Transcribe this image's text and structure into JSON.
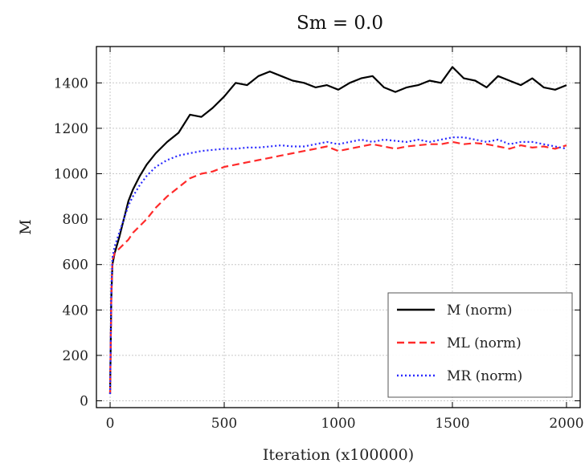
{
  "chart_data": {
    "type": "line",
    "title": "Sm = 0.0",
    "xlabel": "Iteration (x100000)",
    "ylabel": "M",
    "xlim": [
      -60,
      2060
    ],
    "ylim": [
      -30,
      1560
    ],
    "xticks": [
      0,
      500,
      1000,
      1500,
      2000
    ],
    "yticks": [
      0,
      200,
      400,
      600,
      800,
      1000,
      1200,
      1400
    ],
    "grid": true,
    "legend_position": "bottom-right",
    "series": [
      {
        "name": "M (norm)",
        "color": "#000000",
        "dash": "solid",
        "x": [
          0,
          5,
          10,
          20,
          40,
          60,
          80,
          100,
          130,
          160,
          200,
          250,
          300,
          350,
          400,
          450,
          500,
          550,
          600,
          650,
          700,
          750,
          800,
          850,
          900,
          950,
          1000,
          1050,
          1100,
          1150,
          1200,
          1250,
          1300,
          1350,
          1400,
          1450,
          1500,
          1550,
          1600,
          1650,
          1700,
          1750,
          1800,
          1850,
          1900,
          1950,
          2000
        ],
        "y": [
          30,
          450,
          600,
          650,
          720,
          800,
          880,
          930,
          990,
          1040,
          1090,
          1140,
          1180,
          1260,
          1250,
          1290,
          1340,
          1400,
          1390,
          1430,
          1450,
          1430,
          1410,
          1400,
          1380,
          1390,
          1370,
          1400,
          1420,
          1430,
          1380,
          1360,
          1380,
          1390,
          1410,
          1400,
          1470,
          1420,
          1410,
          1380,
          1430,
          1410,
          1390,
          1420,
          1380,
          1370,
          1390
        ]
      },
      {
        "name": "ML (norm)",
        "color": "#ff2a2a",
        "dash": "dashed",
        "x": [
          0,
          5,
          10,
          20,
          40,
          60,
          80,
          100,
          130,
          160,
          200,
          250,
          300,
          350,
          400,
          450,
          500,
          550,
          600,
          650,
          700,
          750,
          800,
          850,
          900,
          950,
          1000,
          1050,
          1100,
          1150,
          1200,
          1250,
          1300,
          1350,
          1400,
          1450,
          1500,
          1550,
          1600,
          1650,
          1700,
          1750,
          1800,
          1850,
          1900,
          1950,
          2000
        ],
        "y": [
          30,
          450,
          620,
          650,
          670,
          690,
          710,
          740,
          770,
          800,
          850,
          900,
          940,
          980,
          1000,
          1010,
          1030,
          1040,
          1050,
          1060,
          1070,
          1080,
          1090,
          1100,
          1110,
          1120,
          1100,
          1110,
          1120,
          1130,
          1120,
          1110,
          1120,
          1125,
          1130,
          1130,
          1140,
          1130,
          1135,
          1130,
          1120,
          1110,
          1125,
          1115,
          1120,
          1110,
          1125
        ]
      },
      {
        "name": "MR (norm)",
        "color": "#2a2aff",
        "dash": "dotted",
        "x": [
          0,
          5,
          10,
          20,
          40,
          60,
          80,
          100,
          130,
          160,
          200,
          250,
          300,
          350,
          400,
          450,
          500,
          550,
          600,
          650,
          700,
          750,
          800,
          850,
          900,
          950,
          1000,
          1050,
          1100,
          1150,
          1200,
          1250,
          1300,
          1350,
          1400,
          1450,
          1500,
          1550,
          1600,
          1650,
          1700,
          1750,
          1800,
          1850,
          1900,
          1950,
          2000
        ],
        "y": [
          30,
          480,
          630,
          680,
          740,
          800,
          860,
          900,
          950,
          990,
          1030,
          1060,
          1080,
          1090,
          1100,
          1105,
          1110,
          1110,
          1115,
          1115,
          1120,
          1125,
          1120,
          1120,
          1130,
          1140,
          1130,
          1140,
          1150,
          1140,
          1150,
          1145,
          1140,
          1150,
          1140,
          1150,
          1160,
          1160,
          1150,
          1140,
          1150,
          1130,
          1140,
          1140,
          1130,
          1120,
          1110
        ]
      }
    ]
  }
}
